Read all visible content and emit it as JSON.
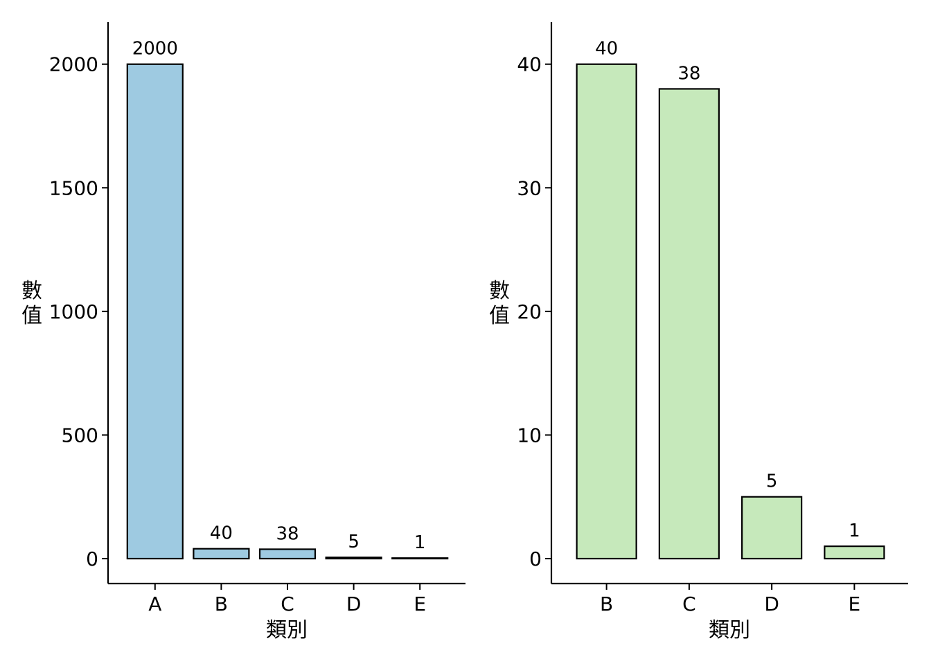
{
  "chart_data": [
    {
      "type": "bar",
      "categories": [
        "A",
        "B",
        "C",
        "D",
        "E"
      ],
      "values": [
        2000,
        40,
        38,
        5,
        1
      ],
      "data_labels": [
        "2000",
        "40",
        "38",
        "5",
        "1"
      ],
      "ylim": [
        0,
        2170
      ],
      "yticks": [
        0,
        500,
        1000,
        1500,
        2000
      ],
      "ytick_labels": [
        "0",
        "500",
        "1000",
        "1500",
        "2000"
      ],
      "xlabel": "類別",
      "ylabel": [
        "數",
        "值"
      ],
      "bar_color": "#9ecae1",
      "grid": false,
      "legend": "none"
    },
    {
      "type": "bar",
      "categories": [
        "B",
        "C",
        "D",
        "E"
      ],
      "values": [
        40,
        38,
        5,
        1
      ],
      "data_labels": [
        "40",
        "38",
        "5",
        "1"
      ],
      "ylim": [
        0,
        43.4
      ],
      "yticks": [
        0,
        10,
        20,
        30,
        40
      ],
      "ytick_labels": [
        "0",
        "10",
        "20",
        "30",
        "40"
      ],
      "xlabel": "類別",
      "ylabel": [
        "數",
        "值"
      ],
      "bar_color": "#c6e9bb",
      "grid": false,
      "legend": "none"
    }
  ]
}
